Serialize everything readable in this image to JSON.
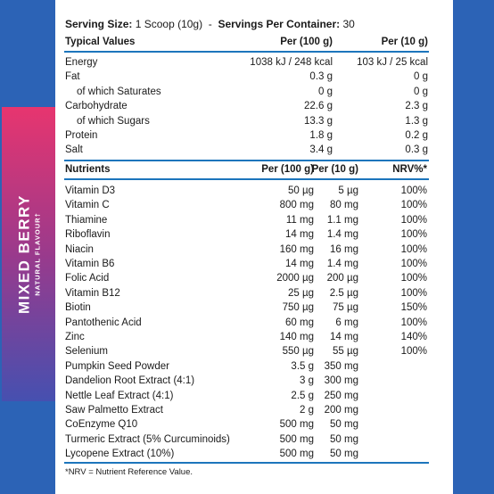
{
  "serving": {
    "size_label": "Serving Size:",
    "size_value": "1 Scoop (10g)",
    "separator": "-",
    "container_label": "Servings Per Container:",
    "container_value": "30"
  },
  "typical": {
    "header": [
      "Typical Values",
      "Per (100 g)",
      "Per (10 g)"
    ],
    "rows": [
      [
        "Energy",
        "1038 kJ / 248 kcal",
        "103 kJ / 25 kcal"
      ],
      [
        "Fat",
        "0.3 g",
        "0 g"
      ],
      [
        "of which Saturates",
        "0 g",
        "0 g"
      ],
      [
        "Carbohydrate",
        "22.6 g",
        "2.3 g"
      ],
      [
        "of which Sugars",
        "13.3 g",
        "1.3 g"
      ],
      [
        "Protein",
        "1.8 g",
        "0.2 g"
      ],
      [
        "Salt",
        "3.4 g",
        "0.3 g"
      ]
    ]
  },
  "nutrients": {
    "header": [
      "Nutrients",
      "Per (100 g)",
      "Per (10 g)",
      "NRV%*"
    ],
    "rows": [
      [
        "Vitamin D3",
        "50 µg",
        "5 µg",
        "100%"
      ],
      [
        "Vitamin C",
        "800 mg",
        "80 mg",
        "100%"
      ],
      [
        "Thiamine",
        "11 mg",
        "1.1 mg",
        "100%"
      ],
      [
        "Riboflavin",
        "14 mg",
        "1.4 mg",
        "100%"
      ],
      [
        "Niacin",
        "160 mg",
        "16 mg",
        "100%"
      ],
      [
        "Vitamin B6",
        "14 mg",
        "1.4 mg",
        "100%"
      ],
      [
        "Folic Acid",
        "2000 µg",
        "200 µg",
        "100%"
      ],
      [
        "Vitamin B12",
        "25 µg",
        "2.5 µg",
        "100%"
      ],
      [
        "Biotin",
        "750 µg",
        "75 µg",
        "150%"
      ],
      [
        "Pantothenic Acid",
        "60 mg",
        "6 mg",
        "100%"
      ],
      [
        "Zinc",
        "140 mg",
        "14 mg",
        "140%"
      ],
      [
        "Selenium",
        "550 µg",
        "55 µg",
        "100%"
      ],
      [
        "Pumpkin Seed Powder",
        "3.5 g",
        "350 mg"
      ],
      [
        "Dandelion Root Extract (4:1)",
        "3 g",
        "300 mg"
      ],
      [
        "Nettle Leaf Extract (4:1)",
        "2.5 g",
        "250 mg"
      ],
      [
        "Saw Palmetto Extract",
        "2 g",
        "200 mg"
      ],
      [
        "CoEnzyme Q10",
        "500 mg",
        "50 mg"
      ],
      [
        "Turmeric Extract (5% Curcuminoids)",
        "500 mg",
        "50 mg"
      ],
      [
        "Lycopene Extract (10%)",
        "500 mg",
        "50 mg"
      ]
    ]
  },
  "footnote": "*NRV = Nutrient Reference Value.",
  "side_label": {
    "title": "MIXED BERRY",
    "subtitle": "NATURAL FLAVOUR†"
  }
}
